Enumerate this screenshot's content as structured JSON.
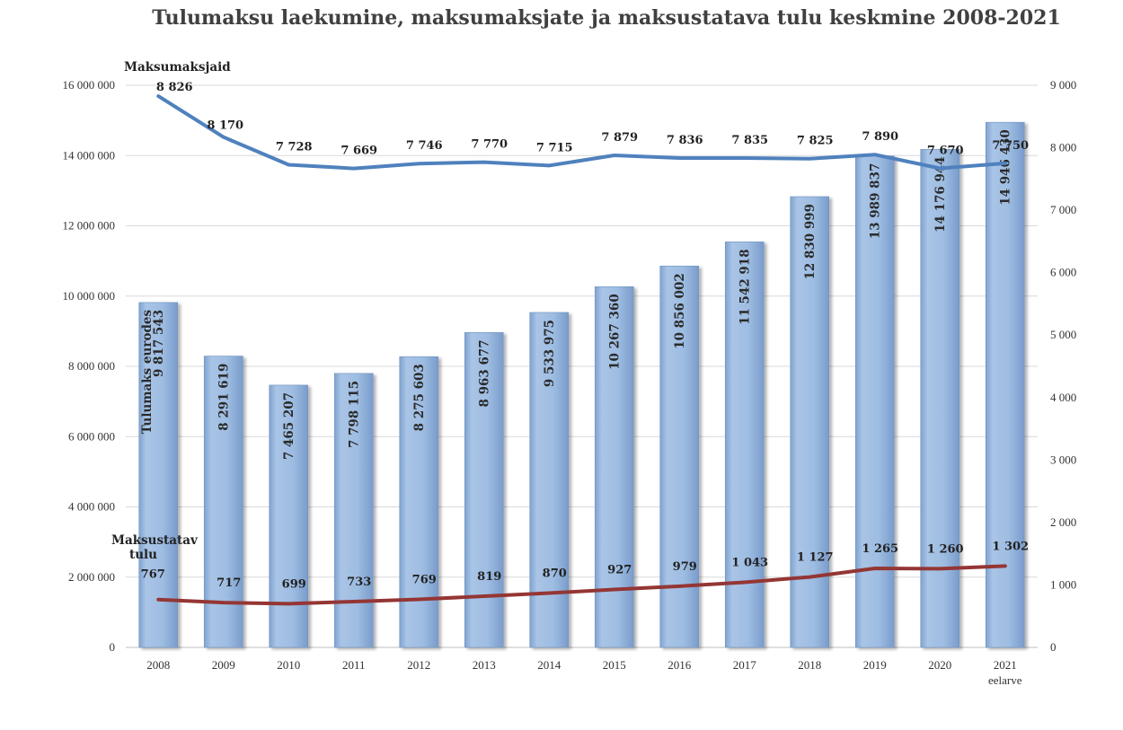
{
  "chart_data": {
    "type": "bar",
    "title": "Tulumaksu laekumine, maksumaksjate ja maksustatava tulu keskmine 2008-2021",
    "categories": [
      "2008",
      "2009",
      "2010",
      "2011",
      "2012",
      "2013",
      "2014",
      "2015",
      "2016",
      "2017",
      "2018",
      "2019",
      "2020",
      "2021"
    ],
    "category_sublabels": {
      "2021": "eelarve"
    },
    "ylim_left": [
      0,
      16000000
    ],
    "yticks_left": [
      "0",
      "2 000 000",
      "4 000 000",
      "6 000 000",
      "8 000 000",
      "10 000 000",
      "12 000 000",
      "14 000 000",
      "16 000 000"
    ],
    "ylim_right": [
      0,
      9000
    ],
    "yticks_right": [
      "0",
      "1 000",
      "2 000",
      "3 000",
      "4 000",
      "5 000",
      "6 000",
      "7 000",
      "8 000",
      "9 000"
    ],
    "grid": true,
    "series": [
      {
        "name": "Tulumaks eurodes",
        "type": "bar",
        "axis": "left",
        "color": "#9bbbe0",
        "values": [
          9817543,
          8291619,
          7465207,
          7798115,
          8275603,
          8963677,
          9533975,
          10267360,
          10856002,
          11542918,
          12830999,
          13989837,
          14176944,
          14946430
        ],
        "labels": [
          "9 817 543",
          "8 291 619",
          "7 465 207",
          "7 798 115",
          "8 275 603",
          "8 963 677",
          "9 533 975",
          "10 267 360",
          "10 856 002",
          "11 542 918",
          "12 830 999",
          "13 989 837",
          "14 176 944",
          "14 946 430"
        ]
      },
      {
        "name": "Maksumaksjaid",
        "type": "line",
        "axis": "right",
        "color": "#4f81bd",
        "values": [
          8826,
          8170,
          7728,
          7669,
          7746,
          7770,
          7715,
          7879,
          7836,
          7835,
          7825,
          7890,
          7670,
          7750
        ],
        "labels": [
          "8 826",
          "8 170",
          "7 728",
          "7 669",
          "7 746",
          "7 770",
          "7 715",
          "7 879",
          "7 836",
          "7 835",
          "7 825",
          "7 890",
          "7 670",
          "7 750"
        ]
      },
      {
        "name": "Maksustatav tulu",
        "name_lines": [
          "Maksustatav",
          "tulu"
        ],
        "type": "line",
        "axis": "right",
        "color": "#943634",
        "values": [
          767,
          717,
          699,
          733,
          769,
          819,
          870,
          927,
          979,
          1043,
          1127,
          1265,
          1260,
          1302
        ],
        "labels": [
          "767",
          "717",
          "699",
          "733",
          "769",
          "819",
          "870",
          "927",
          "979",
          "1 043",
          "1 127",
          "1 265",
          "1 260",
          "1 302"
        ]
      }
    ]
  }
}
